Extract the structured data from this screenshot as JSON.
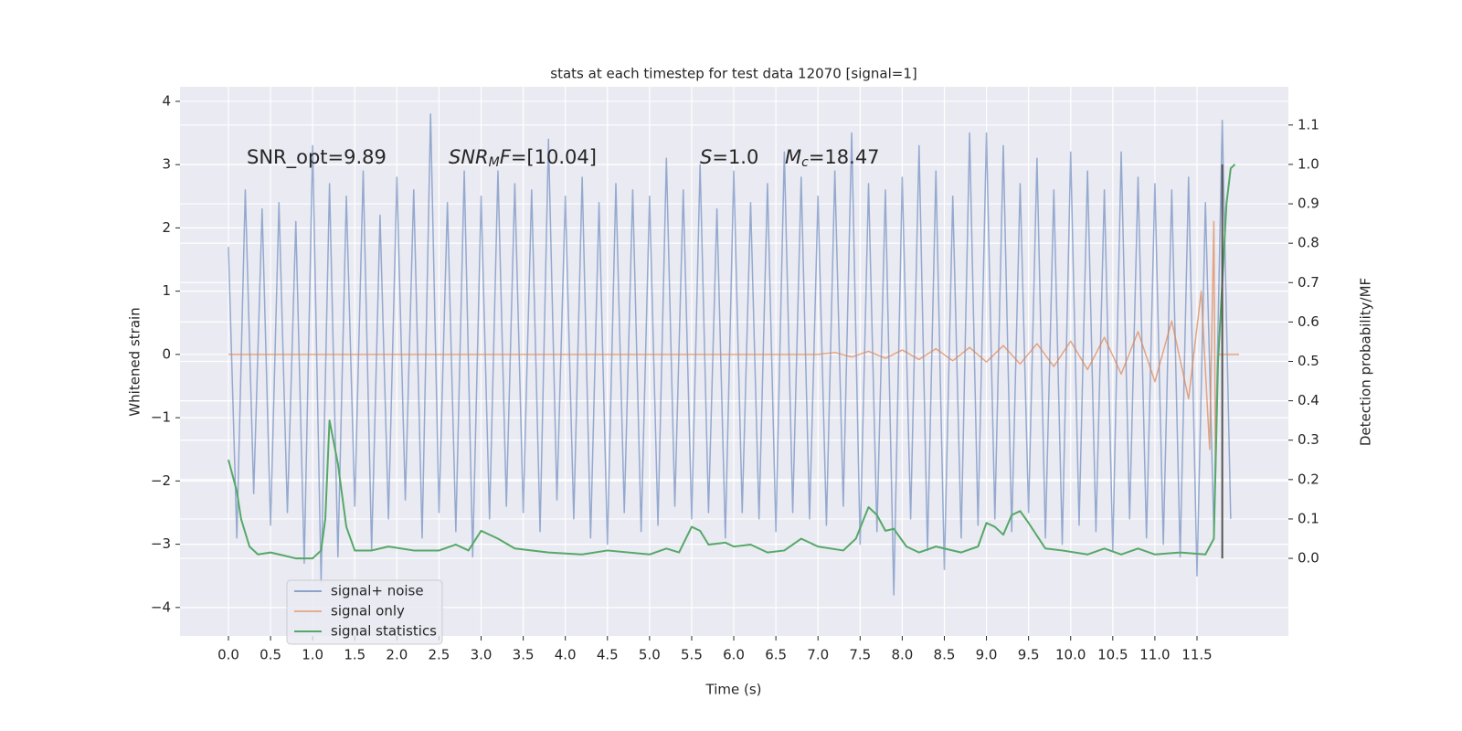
{
  "chart_data": {
    "type": "line",
    "title": "stats at each timestep for test data 12070 [signal=1]",
    "xlabel": "Time (s)",
    "ylabel": "Whitened strain",
    "y2label": "Detection probability/MF",
    "xlim": [
      -0.575,
      12.585
    ],
    "ylim": [
      -4.45,
      4.23
    ],
    "y2lim": [
      -0.197,
      1.197
    ],
    "xticks": [
      {
        "value": 0,
        "label": "0.0"
      },
      {
        "value": 0.5,
        "label": "0.5"
      },
      {
        "value": 1,
        "label": "1.0"
      },
      {
        "value": 1.5,
        "label": "1.5"
      },
      {
        "value": 2,
        "label": "2.0"
      },
      {
        "value": 2.5,
        "label": "2.5"
      },
      {
        "value": 3,
        "label": "3.0"
      },
      {
        "value": 3.5,
        "label": "3.5"
      },
      {
        "value": 4,
        "label": "4.0"
      },
      {
        "value": 4.5,
        "label": "4.5"
      },
      {
        "value": 5,
        "label": "5.0"
      },
      {
        "value": 5.5,
        "label": "5.5"
      },
      {
        "value": 6,
        "label": "6.0"
      },
      {
        "value": 6.5,
        "label": "6.5"
      },
      {
        "value": 7,
        "label": "7.0"
      },
      {
        "value": 7.5,
        "label": "7.5"
      },
      {
        "value": 8,
        "label": "8.0"
      },
      {
        "value": 8.5,
        "label": "8.5"
      },
      {
        "value": 9,
        "label": "9.0"
      },
      {
        "value": 9.5,
        "label": "9.5"
      },
      {
        "value": 10,
        "label": "10.0"
      },
      {
        "value": 10.5,
        "label": "10.5"
      },
      {
        "value": 11,
        "label": "11.0"
      },
      {
        "value": 11.5,
        "label": "11.5"
      }
    ],
    "yticks": [
      {
        "value": -4,
        "label": "−4"
      },
      {
        "value": -3,
        "label": "−3"
      },
      {
        "value": -2,
        "label": "−2"
      },
      {
        "value": -1,
        "label": "−1"
      },
      0,
      1,
      2,
      3,
      4
    ],
    "y2ticks": [
      {
        "value": 0,
        "label": "0.0"
      },
      {
        "value": 0.1,
        "label": "0.1"
      },
      {
        "value": 0.2,
        "label": "0.2"
      },
      {
        "value": 0.3,
        "label": "0.3"
      },
      {
        "value": 0.4,
        "label": "0.4"
      },
      {
        "value": 0.5,
        "label": "0.5"
      },
      {
        "value": 0.6,
        "label": "0.6"
      },
      {
        "value": 0.7,
        "label": "0.7"
      },
      {
        "value": 0.8,
        "label": "0.8"
      },
      {
        "value": 0.9,
        "label": "0.9"
      },
      {
        "value": 1,
        "label": "1.0"
      },
      {
        "value": 1.1,
        "label": "1.1"
      }
    ],
    "grid": true,
    "legend": "lower left",
    "series": [
      {
        "name": "signal+ noise",
        "color": "#4c72b0",
        "x": [
          0,
          0.1,
          0.2,
          0.3,
          0.4,
          0.5,
          0.6,
          0.7,
          0.8,
          0.9,
          1,
          1.1,
          1.2,
          1.3,
          1.4,
          1.5,
          1.6,
          1.7,
          1.8,
          1.9,
          2,
          2.1,
          2.2,
          2.3,
          2.4,
          2.5,
          2.6,
          2.7,
          2.8,
          2.9,
          3,
          3.1,
          3.2,
          3.3,
          3.4,
          3.5,
          3.6,
          3.7,
          3.8,
          3.9,
          4,
          4.1,
          4.2,
          4.3,
          4.4,
          4.5,
          4.6,
          4.7,
          4.8,
          4.9,
          5,
          5.1,
          5.2,
          5.3,
          5.4,
          5.5,
          5.6,
          5.7,
          5.8,
          5.9,
          6,
          6.1,
          6.2,
          6.3,
          6.4,
          6.5,
          6.6,
          6.7,
          6.8,
          6.9,
          7,
          7.1,
          7.2,
          7.3,
          7.4,
          7.5,
          7.6,
          7.7,
          7.8,
          7.9,
          8,
          8.1,
          8.2,
          8.3,
          8.4,
          8.5,
          8.6,
          8.7,
          8.8,
          8.9,
          9,
          9.1,
          9.2,
          9.3,
          9.4,
          9.5,
          9.6,
          9.7,
          9.8,
          9.9,
          10,
          10.1,
          10.2,
          10.3,
          10.4,
          10.5,
          10.6,
          10.7,
          10.8,
          10.9,
          11,
          11.1,
          11.2,
          11.3,
          11.4,
          11.5,
          11.6,
          11.7,
          11.8,
          11.9
        ],
        "values": [
          1.7,
          -2.9,
          2.6,
          -2.2,
          2.3,
          -2.7,
          2.4,
          -2.5,
          2.1,
          -3.3,
          3.3,
          -3.6,
          2.7,
          -3.2,
          2.5,
          -2.4,
          2.9,
          -3.1,
          2.2,
          -2.6,
          2.8,
          -2.3,
          2.6,
          -2.9,
          3.8,
          -2.5,
          2.4,
          -2.8,
          2.9,
          -3.2,
          2.5,
          -2.6,
          2.9,
          -2.4,
          2.7,
          -2.5,
          2.6,
          -2.8,
          3.4,
          -2.3,
          2.5,
          -2.6,
          2.8,
          -2.9,
          2.4,
          -3.0,
          2.7,
          -2.5,
          2.6,
          -2.8,
          2.5,
          -2.7,
          3.1,
          -2.4,
          2.6,
          -2.6,
          3.0,
          -2.5,
          2.3,
          -2.9,
          2.9,
          -2.5,
          2.4,
          -2.6,
          2.7,
          -2.8,
          3.2,
          -2.5,
          2.8,
          -2.6,
          2.5,
          -2.7,
          2.9,
          -2.4,
          3.5,
          -3.0,
          2.7,
          -2.8,
          2.6,
          -3.8,
          2.8,
          -2.6,
          3.3,
          -3.1,
          2.9,
          -3.4,
          2.5,
          -2.9,
          3.5,
          -2.7,
          3.5,
          -2.6,
          3.3,
          -2.8,
          2.7,
          -2.5,
          3.1,
          -2.9,
          2.6,
          -3.0,
          3.2,
          -2.7,
          2.9,
          -2.8,
          2.6,
          -3.1,
          3.2,
          -2.6,
          2.8,
          -2.9,
          2.7,
          -3.0,
          2.6,
          -3.2,
          2.8,
          -3.5,
          2.4,
          -2.8,
          3.7,
          -2.6
        ]
      },
      {
        "name": "signal only",
        "color": "#dd8452",
        "x": [
          0,
          7,
          7.2,
          7.4,
          7.6,
          7.8,
          8,
          8.2,
          8.4,
          8.6,
          8.8,
          9,
          9.2,
          9.4,
          9.6,
          9.8,
          10,
          10.2,
          10.4,
          10.6,
          10.8,
          11,
          11.2,
          11.4,
          11.55,
          11.65,
          11.7,
          11.72,
          11.75,
          12
        ],
        "values": [
          0,
          0,
          0.03,
          -0.04,
          0.05,
          -0.06,
          0.07,
          -0.08,
          0.09,
          -0.1,
          0.11,
          -0.12,
          0.14,
          -0.15,
          0.17,
          -0.19,
          0.21,
          -0.24,
          0.27,
          -0.31,
          0.36,
          -0.43,
          0.53,
          -0.7,
          1.0,
          -1.5,
          2.1,
          -1.9,
          0,
          0
        ]
      },
      {
        "name": "signal statistics",
        "color": "#55a868",
        "axis": "y2",
        "x": [
          0,
          0.1,
          0.15,
          0.25,
          0.35,
          0.5,
          0.6,
          0.8,
          1,
          1.1,
          1.15,
          1.2,
          1.3,
          1.4,
          1.5,
          1.7,
          1.9,
          2.2,
          2.5,
          2.7,
          2.85,
          3,
          3.2,
          3.4,
          3.8,
          4.2,
          4.5,
          5,
          5.2,
          5.35,
          5.5,
          5.6,
          5.7,
          5.9,
          6,
          6.2,
          6.4,
          6.6,
          6.8,
          7,
          7.3,
          7.45,
          7.6,
          7.7,
          7.8,
          7.9,
          8.05,
          8.2,
          8.4,
          8.7,
          8.9,
          9,
          9.1,
          9.2,
          9.3,
          9.4,
          9.5,
          9.7,
          9.9,
          10.2,
          10.4,
          10.6,
          10.8,
          11,
          11.3,
          11.6,
          11.7,
          11.75,
          11.85,
          11.9,
          11.95
        ],
        "values": [
          0.25,
          0.17,
          0.1,
          0.03,
          0.01,
          0.015,
          0.01,
          0,
          0,
          0.02,
          0.1,
          0.35,
          0.24,
          0.08,
          0.02,
          0.02,
          0.03,
          0.02,
          0.02,
          0.035,
          0.02,
          0.07,
          0.05,
          0.025,
          0.015,
          0.01,
          0.02,
          0.01,
          0.025,
          0.015,
          0.08,
          0.07,
          0.035,
          0.04,
          0.03,
          0.035,
          0.015,
          0.02,
          0.05,
          0.03,
          0.02,
          0.05,
          0.13,
          0.11,
          0.07,
          0.075,
          0.03,
          0.015,
          0.03,
          0.015,
          0.03,
          0.09,
          0.08,
          0.06,
          0.11,
          0.12,
          0.09,
          0.025,
          0.02,
          0.01,
          0.025,
          0.01,
          0.025,
          0.01,
          0.015,
          0.01,
          0.05,
          0.5,
          0.9,
          0.99,
          1.0
        ]
      }
    ],
    "vline": {
      "x": 11.8,
      "y2": [
        0,
        1.0
      ],
      "color": "#555555"
    },
    "annotations": [
      {
        "parts": [
          {
            "text": "SNR_opt=9.89"
          }
        ]
      },
      {
        "parts": [
          {
            "text": "SNR",
            "italic": true
          },
          {
            "text": "M",
            "italic": true,
            "sub": true
          },
          {
            "text": "F",
            "italic": true
          },
          {
            "text": "=[10.04]"
          }
        ]
      },
      {
        "parts": [
          {
            "text": "S",
            "italic": true
          },
          {
            "text": "=1.0"
          }
        ]
      },
      {
        "parts": [
          {
            "text": "M",
            "italic": true
          },
          {
            "text": "c",
            "italic": true,
            "sub": true
          },
          {
            "text": "=18.47"
          }
        ]
      }
    ]
  }
}
